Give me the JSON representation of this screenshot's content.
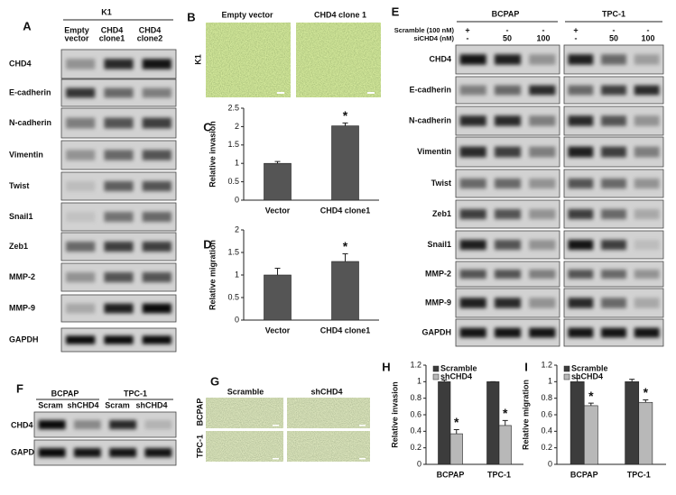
{
  "panel_labels": [
    "A",
    "B",
    "C",
    "D",
    "E",
    "F",
    "G",
    "H",
    "I"
  ],
  "panel_a": {
    "title": "K1",
    "columns": [
      [
        "Empty",
        "vector"
      ],
      [
        "CHD4",
        "clone1"
      ],
      [
        "CHD4",
        "clone2"
      ]
    ],
    "rows": [
      "CHD4",
      "E-cadherin",
      "N-cadherin",
      "Vimentin",
      "Twist",
      "Snail1",
      "Zeb1",
      "MMP-2",
      "MMP-9",
      "GAPDH"
    ]
  },
  "panel_b": {
    "columns": [
      "Empty vector",
      "CHD4 clone 1"
    ],
    "row_label": "K1"
  },
  "panel_e": {
    "groups": [
      "BCPAP",
      "TPC-1"
    ],
    "conditions": [
      {
        "label": "Scramble (100 nM)",
        "values": [
          "+",
          "-",
          "-"
        ]
      },
      {
        "label": "siCHD4 (nM)",
        "values": [
          "-",
          "50",
          "100"
        ]
      }
    ],
    "rows": [
      "CHD4",
      "E-cadherin",
      "N-cadherin",
      "Vimentin",
      "Twist",
      "Zeb1",
      "Snail1",
      "MMP-2",
      "MMP-9",
      "GAPDH"
    ]
  },
  "panel_f": {
    "groups": [
      "BCPAP",
      "TPC-1"
    ],
    "columns": [
      "Scram",
      "shCHD4",
      "Scram",
      "shCHD4"
    ],
    "rows": [
      "CHD4",
      "GAPDH"
    ]
  },
  "panel_g": {
    "columns": [
      "Scramble",
      "shCHD4"
    ],
    "rows": [
      "BCPAP",
      "TPC-1"
    ]
  },
  "chart_data": [
    {
      "type": "bar",
      "ylabel": "Relative invasion",
      "categories": [
        "Vector",
        "CHD4 clone1"
      ],
      "series": [
        {
          "color": "#555555",
          "values": [
            1.0,
            2.02
          ],
          "errors": [
            0.05,
            0.08
          ]
        }
      ],
      "ylim": [
        0,
        2.5
      ],
      "yticks": [
        0,
        0.5,
        1,
        1.5,
        2,
        2.5
      ],
      "significance_marks": [
        "*"
      ]
    },
    {
      "type": "bar",
      "ylabel": "Relative migration",
      "categories": [
        "Vector",
        "CHD4 clone1"
      ],
      "series": [
        {
          "color": "#555555",
          "values": [
            1.0,
            1.3
          ],
          "errors": [
            0.15,
            0.17
          ]
        }
      ],
      "ylim": [
        0,
        2
      ],
      "yticks": [
        0,
        0.5,
        1,
        1.5,
        2
      ],
      "significance_marks": [
        "*"
      ]
    },
    {
      "type": "bar",
      "ylabel": "Relative invasion",
      "categories": [
        "BCPAP",
        "TPC-1"
      ],
      "legend": "upper left",
      "series": [
        {
          "name": "Scramble",
          "color": "#3c3c3c",
          "values": [
            1.0,
            1.0
          ],
          "errors": [
            0.02,
            0.0
          ]
        },
        {
          "name": "shCHD4",
          "color": "#b8b8b8",
          "values": [
            0.37,
            0.47
          ],
          "errors": [
            0.05,
            0.06
          ]
        }
      ],
      "ylim": [
        0,
        1.2
      ],
      "yticks": [
        0,
        0.2,
        0.4,
        0.6,
        0.8,
        1,
        1.2
      ],
      "significance_marks": [
        "*",
        "*"
      ]
    },
    {
      "type": "bar",
      "ylabel": "Relative migration",
      "categories": [
        "BCPAP",
        "TPC-1"
      ],
      "legend": "upper left",
      "series": [
        {
          "name": "Scramble",
          "color": "#3c3c3c",
          "values": [
            1.0,
            1.0
          ],
          "errors": [
            0.04,
            0.03
          ]
        },
        {
          "name": "shCHD4",
          "color": "#b8b8b8",
          "values": [
            0.71,
            0.75
          ],
          "errors": [
            0.03,
            0.03
          ]
        }
      ],
      "ylim": [
        0,
        1.2
      ],
      "yticks": [
        0,
        0.2,
        0.4,
        0.6,
        0.8,
        1,
        1.2
      ],
      "significance_marks": [
        "*",
        "*"
      ]
    }
  ]
}
